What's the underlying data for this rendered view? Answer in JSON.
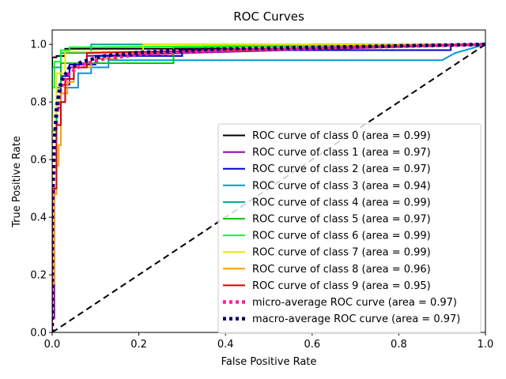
{
  "chart_data": {
    "type": "line",
    "title": "ROC Curves",
    "xlabel": "False Positive Rate",
    "ylabel": "True Positive Rate",
    "xlim": [
      0.0,
      1.0
    ],
    "ylim": [
      0.0,
      1.05
    ],
    "xticks": [
      0.0,
      0.2,
      0.4,
      0.6,
      0.8,
      1.0
    ],
    "yticks": [
      0.0,
      0.2,
      0.4,
      0.6,
      0.8,
      1.0
    ],
    "xtick_labels": [
      "0.0",
      "0.2",
      "0.4",
      "0.6",
      "0.8",
      "1.0"
    ],
    "ytick_labels": [
      "0.0",
      "0.2",
      "0.4",
      "0.6",
      "0.8",
      "1.0"
    ],
    "grid": false,
    "legend_position": "lower-right",
    "series": [
      {
        "name": "ROC curve of class 0 (area = 0.99)",
        "color": "#000000",
        "dash": "solid",
        "x": [
          0,
          0,
          0.01,
          0.01,
          0.03,
          0.03,
          0.6,
          0.6,
          1.0
        ],
        "y": [
          0,
          0.955,
          0.955,
          0.96,
          0.96,
          0.985,
          0.985,
          1.0,
          1.0
        ]
      },
      {
        "name": "ROC curve of class 1 (area = 0.97)",
        "color": "#8a00a8",
        "dash": "solid",
        "x": [
          0,
          0,
          0.005,
          0.005,
          0.01,
          0.01,
          0.02,
          0.02,
          0.04,
          0.04,
          0.08,
          0.08,
          1.0
        ],
        "y": [
          0,
          0.05,
          0.05,
          0.5,
          0.5,
          0.78,
          0.78,
          0.86,
          0.86,
          0.92,
          0.92,
          0.96,
          1.0
        ]
      },
      {
        "name": "ROC curve of class 2 (area = 0.97)",
        "color": "#0000cc",
        "dash": "solid",
        "x": [
          0,
          0,
          0.01,
          0.01,
          0.02,
          0.02,
          0.04,
          0.04,
          0.1,
          0.1,
          0.3,
          0.3,
          0.92,
          0.92,
          1.0
        ],
        "y": [
          0,
          0.6,
          0.6,
          0.82,
          0.82,
          0.89,
          0.89,
          0.93,
          0.93,
          0.96,
          0.96,
          0.98,
          0.98,
          1.0,
          1.0
        ]
      },
      {
        "name": "ROC curve of class 3 (area = 0.94)",
        "color": "#009bd8",
        "dash": "solid",
        "x": [
          0,
          0,
          0.01,
          0.01,
          0.03,
          0.03,
          0.06,
          0.06,
          0.09,
          0.09,
          0.13,
          0.13,
          0.9,
          0.93,
          1.0
        ],
        "y": [
          0,
          0.6,
          0.6,
          0.8,
          0.8,
          0.85,
          0.85,
          0.9,
          0.9,
          0.92,
          0.92,
          0.945,
          0.945,
          0.97,
          1.0
        ]
      },
      {
        "name": "ROC curve of class 4 (area = 0.99)",
        "color": "#00a888",
        "dash": "solid",
        "x": [
          0,
          0,
          0.02,
          0.02,
          0.09,
          0.09,
          1.0
        ],
        "y": [
          0,
          0.92,
          0.92,
          0.97,
          0.97,
          1.0,
          1.0
        ]
      },
      {
        "name": "ROC curve of class 5 (area = 0.97)",
        "color": "#00c800",
        "dash": "solid",
        "x": [
          0,
          0,
          0.01,
          0.01,
          0.02,
          0.02,
          0.28,
          0.28,
          1.0
        ],
        "y": [
          0,
          0.7,
          0.7,
          0.85,
          0.85,
          0.935,
          0.935,
          0.99,
          1.0
        ]
      },
      {
        "name": "ROC curve of class 6 (area = 0.99)",
        "color": "#00ff22",
        "dash": "solid",
        "x": [
          0,
          0,
          0.005,
          0.005,
          0.02,
          0.02,
          0.04,
          0.04,
          1.0
        ],
        "y": [
          0,
          0.85,
          0.85,
          0.94,
          0.94,
          0.98,
          0.98,
          0.99,
          1.0
        ]
      },
      {
        "name": "ROC curve of class 7 (area = 0.99)",
        "color": "#e8e800",
        "dash": "solid",
        "x": [
          0,
          0,
          0.01,
          0.01,
          0.03,
          0.03,
          0.21,
          0.21,
          1.0
        ],
        "y": [
          0,
          0.75,
          0.75,
          0.9,
          0.9,
          0.975,
          0.975,
          1.0,
          1.0
        ]
      },
      {
        "name": "ROC curve of class 8 (area = 0.96)",
        "color": "#ff9a00",
        "dash": "solid",
        "x": [
          0,
          0,
          0.005,
          0.005,
          0.01,
          0.01,
          0.015,
          0.015,
          0.02,
          0.02,
          0.035,
          0.035,
          0.05,
          0.05,
          0.09,
          0.09,
          0.15,
          0.15,
          1.0
        ],
        "y": [
          0,
          0.17,
          0.17,
          0.48,
          0.48,
          0.58,
          0.58,
          0.65,
          0.65,
          0.83,
          0.83,
          0.87,
          0.87,
          0.92,
          0.92,
          0.95,
          0.95,
          0.97,
          1.0
        ]
      },
      {
        "name": "ROC curve of class 9 (area = 0.95)",
        "color": "#d80000",
        "dash": "solid",
        "x": [
          0,
          0,
          0.01,
          0.01,
          0.02,
          0.02,
          0.03,
          0.03,
          0.05,
          0.05,
          0.08,
          0.08,
          1.0
        ],
        "y": [
          0,
          0.5,
          0.5,
          0.72,
          0.72,
          0.8,
          0.8,
          0.88,
          0.88,
          0.92,
          0.92,
          0.97,
          1.0
        ]
      },
      {
        "name": "micro-average ROC curve (area = 0.97)",
        "color": "#ff1ca0",
        "dash": "dotted",
        "x": [
          0,
          0,
          0.005,
          0.01,
          0.02,
          0.04,
          0.07,
          0.12,
          0.2,
          0.4,
          0.7,
          1.0
        ],
        "y": [
          0,
          0.4,
          0.62,
          0.75,
          0.85,
          0.9,
          0.93,
          0.95,
          0.965,
          0.98,
          0.99,
          1.0
        ]
      },
      {
        "name": "macro-average ROC curve (area = 0.97)",
        "color": "#00006e",
        "dash": "dotted",
        "x": [
          0,
          0,
          0.005,
          0.01,
          0.02,
          0.04,
          0.07,
          0.12,
          0.2,
          0.4,
          0.7,
          1.0
        ],
        "y": [
          0,
          0.45,
          0.66,
          0.78,
          0.87,
          0.92,
          0.94,
          0.96,
          0.972,
          0.985,
          0.992,
          1.0
        ]
      }
    ],
    "reference_line": {
      "x": [
        0,
        1
      ],
      "y": [
        0,
        1
      ],
      "color": "#000000",
      "dash": "dashed"
    }
  }
}
